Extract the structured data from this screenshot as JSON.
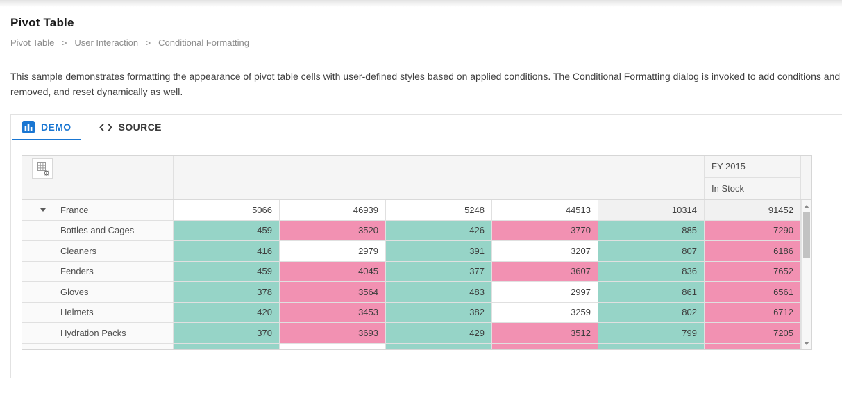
{
  "page": {
    "title": "Pivot Table",
    "breadcrumb": [
      "Pivot Table",
      "User Interaction",
      "Conditional Formatting"
    ],
    "breadcrumb_separator": ">",
    "description_line1": "This sample demonstrates formatting the appearance of pivot table cells with user-defined styles based on applied conditions. The Conditional Formatting dialog is invoked to add conditions and",
    "description_line2": "removed, and reset dynamically as well."
  },
  "tabs": [
    {
      "label": "DEMO",
      "icon": "bar-chart-icon",
      "active": true
    },
    {
      "label": "SOURCE",
      "icon": "code-icon",
      "active": false
    }
  ],
  "colors": {
    "accent_blue": "#1976d2",
    "teal": "#96d4c7",
    "pink": "#f291b2",
    "subtotal_bg": "#f1f1f1",
    "header_bg": "#f5f5f5"
  },
  "pivot": {
    "toolbar": {
      "formatting_button_icon": "grid-gear-icon"
    },
    "column_headers": [
      "FY 2015",
      "In Stock"
    ],
    "rows": [
      {
        "label": "France",
        "expanded": true,
        "values": [
          {
            "v": "5066",
            "bg": "white"
          },
          {
            "v": "46939",
            "bg": "white"
          },
          {
            "v": "5248",
            "bg": "white"
          },
          {
            "v": "44513",
            "bg": "white"
          },
          {
            "v": "10314",
            "bg": "gray"
          },
          {
            "v": "91452",
            "bg": "gray"
          }
        ]
      },
      {
        "label": "Bottles and Cages",
        "values": [
          {
            "v": "459",
            "bg": "teal"
          },
          {
            "v": "3520",
            "bg": "pink"
          },
          {
            "v": "426",
            "bg": "teal"
          },
          {
            "v": "3770",
            "bg": "pink"
          },
          {
            "v": "885",
            "bg": "teal"
          },
          {
            "v": "7290",
            "bg": "pink"
          }
        ]
      },
      {
        "label": "Cleaners",
        "values": [
          {
            "v": "416",
            "bg": "teal"
          },
          {
            "v": "2979",
            "bg": "white"
          },
          {
            "v": "391",
            "bg": "teal"
          },
          {
            "v": "3207",
            "bg": "white"
          },
          {
            "v": "807",
            "bg": "teal"
          },
          {
            "v": "6186",
            "bg": "pink"
          }
        ]
      },
      {
        "label": "Fenders",
        "values": [
          {
            "v": "459",
            "bg": "teal"
          },
          {
            "v": "4045",
            "bg": "pink"
          },
          {
            "v": "377",
            "bg": "teal"
          },
          {
            "v": "3607",
            "bg": "pink"
          },
          {
            "v": "836",
            "bg": "teal"
          },
          {
            "v": "7652",
            "bg": "pink"
          }
        ]
      },
      {
        "label": "Gloves",
        "values": [
          {
            "v": "378",
            "bg": "teal"
          },
          {
            "v": "3564",
            "bg": "pink"
          },
          {
            "v": "483",
            "bg": "teal"
          },
          {
            "v": "2997",
            "bg": "white"
          },
          {
            "v": "861",
            "bg": "teal"
          },
          {
            "v": "6561",
            "bg": "pink"
          }
        ]
      },
      {
        "label": "Helmets",
        "values": [
          {
            "v": "420",
            "bg": "teal"
          },
          {
            "v": "3453",
            "bg": "pink"
          },
          {
            "v": "382",
            "bg": "teal"
          },
          {
            "v": "3259",
            "bg": "white"
          },
          {
            "v": "802",
            "bg": "teal"
          },
          {
            "v": "6712",
            "bg": "pink"
          }
        ]
      },
      {
        "label": "Hydration Packs",
        "values": [
          {
            "v": "370",
            "bg": "teal"
          },
          {
            "v": "3693",
            "bg": "pink"
          },
          {
            "v": "429",
            "bg": "teal"
          },
          {
            "v": "3512",
            "bg": "pink"
          },
          {
            "v": "799",
            "bg": "teal"
          },
          {
            "v": "7205",
            "bg": "pink"
          }
        ]
      },
      {
        "label": "",
        "partial": true,
        "values": [
          {
            "v": "",
            "bg": "teal"
          },
          {
            "v": "",
            "bg": "white"
          },
          {
            "v": "",
            "bg": "teal"
          },
          {
            "v": "",
            "bg": "pink"
          },
          {
            "v": "",
            "bg": "teal"
          },
          {
            "v": "",
            "bg": "pink"
          }
        ]
      }
    ]
  }
}
